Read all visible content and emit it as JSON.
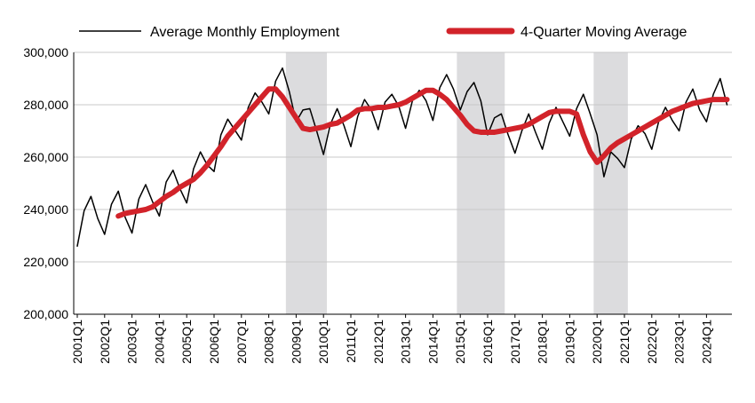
{
  "chart_data": {
    "type": "line",
    "legend": {
      "placement": "top",
      "entries": [
        "Average Monthly Employment",
        "4-Quarter Moving Average"
      ]
    },
    "ylim": [
      200000,
      300000
    ],
    "y_ticks": [
      "200,000",
      "220,000",
      "240,000",
      "260,000",
      "280,000",
      "300,000"
    ],
    "y_tick_values": [
      200000,
      220000,
      240000,
      260000,
      280000,
      300000
    ],
    "x_tick_labels": [
      "2001Q1",
      "2002Q1",
      "2003Q1",
      "2004Q1",
      "2005Q1",
      "2006Q1",
      "2007Q1",
      "2008Q1",
      "2009Q1",
      "2010Q1",
      "2011Q1",
      "2012Q1",
      "2013Q1",
      "2014Q1",
      "2015Q1",
      "2016Q1",
      "2017Q1",
      "2018Q1",
      "2019Q1",
      "2020Q1",
      "2021Q1",
      "2022Q1",
      "2023Q1",
      "2024Q1"
    ],
    "grid": "horizontal",
    "colors": {
      "employment": "#000000",
      "moving_average": "#d2232a",
      "recession_band": "#dcdcde",
      "grid": "#c8c8c8"
    },
    "shaded_periods": [
      {
        "start": "2008Q4",
        "end": "2010Q1"
      },
      {
        "start": "2015Q1",
        "end": "2016Q3"
      },
      {
        "start": "2020Q1",
        "end": "2021Q1"
      }
    ],
    "series": [
      {
        "name": "Average Monthly Employment",
        "values": [
          226000,
          239500,
          245000,
          236500,
          230500,
          242000,
          247000,
          237000,
          231000,
          244000,
          249500,
          243000,
          237500,
          250500,
          255000,
          248000,
          242500,
          255500,
          262000,
          257000,
          254500,
          268500,
          274500,
          270500,
          266500,
          279000,
          284500,
          281000,
          276500,
          289000,
          294000,
          285000,
          273500,
          278000,
          278500,
          270000,
          261000,
          272500,
          278500,
          272000,
          264000,
          275500,
          282000,
          278000,
          270500,
          281000,
          284000,
          279500,
          271000,
          281500,
          285500,
          281500,
          274000,
          286500,
          291500,
          286000,
          278000,
          285000,
          288500,
          281500,
          268500,
          275000,
          276500,
          268500,
          261500,
          270000,
          276500,
          269500,
          263000,
          273000,
          279000,
          273500,
          268000,
          278500,
          284000,
          276500,
          268500,
          252500,
          262000,
          259500,
          256000,
          267000,
          272000,
          269000,
          263000,
          273500,
          279000,
          274000,
          270000,
          281000,
          286000,
          278000,
          273500,
          284000,
          290000,
          280000
        ]
      },
      {
        "name": "4-Quarter Moving Average",
        "values": [
          null,
          null,
          null,
          null,
          null,
          null,
          237500,
          238500,
          239000,
          239500,
          240000,
          241000,
          243000,
          245000,
          246500,
          248500,
          250000,
          251500,
          254000,
          257000,
          260500,
          264000,
          268000,
          271000,
          274000,
          277000,
          280000,
          283000,
          286000,
          286000,
          283000,
          279000,
          275000,
          271000,
          270500,
          271000,
          271500,
          272500,
          273000,
          274500,
          276000,
          278000,
          278500,
          278500,
          279000,
          279000,
          279500,
          280000,
          281000,
          282500,
          284000,
          285500,
          285500,
          284000,
          282000,
          279000,
          276000,
          272500,
          270000,
          269500,
          269500,
          269500,
          270000,
          270500,
          271000,
          271500,
          272500,
          274000,
          275500,
          277000,
          277500,
          277500,
          277500,
          276500,
          268500,
          262000,
          258000,
          260500,
          263500,
          265500,
          267000,
          268500,
          270000,
          271500,
          273000,
          274500,
          276000,
          277500,
          278500,
          279500,
          280500,
          281000,
          281500,
          282000,
          282000,
          282000
        ]
      }
    ]
  }
}
